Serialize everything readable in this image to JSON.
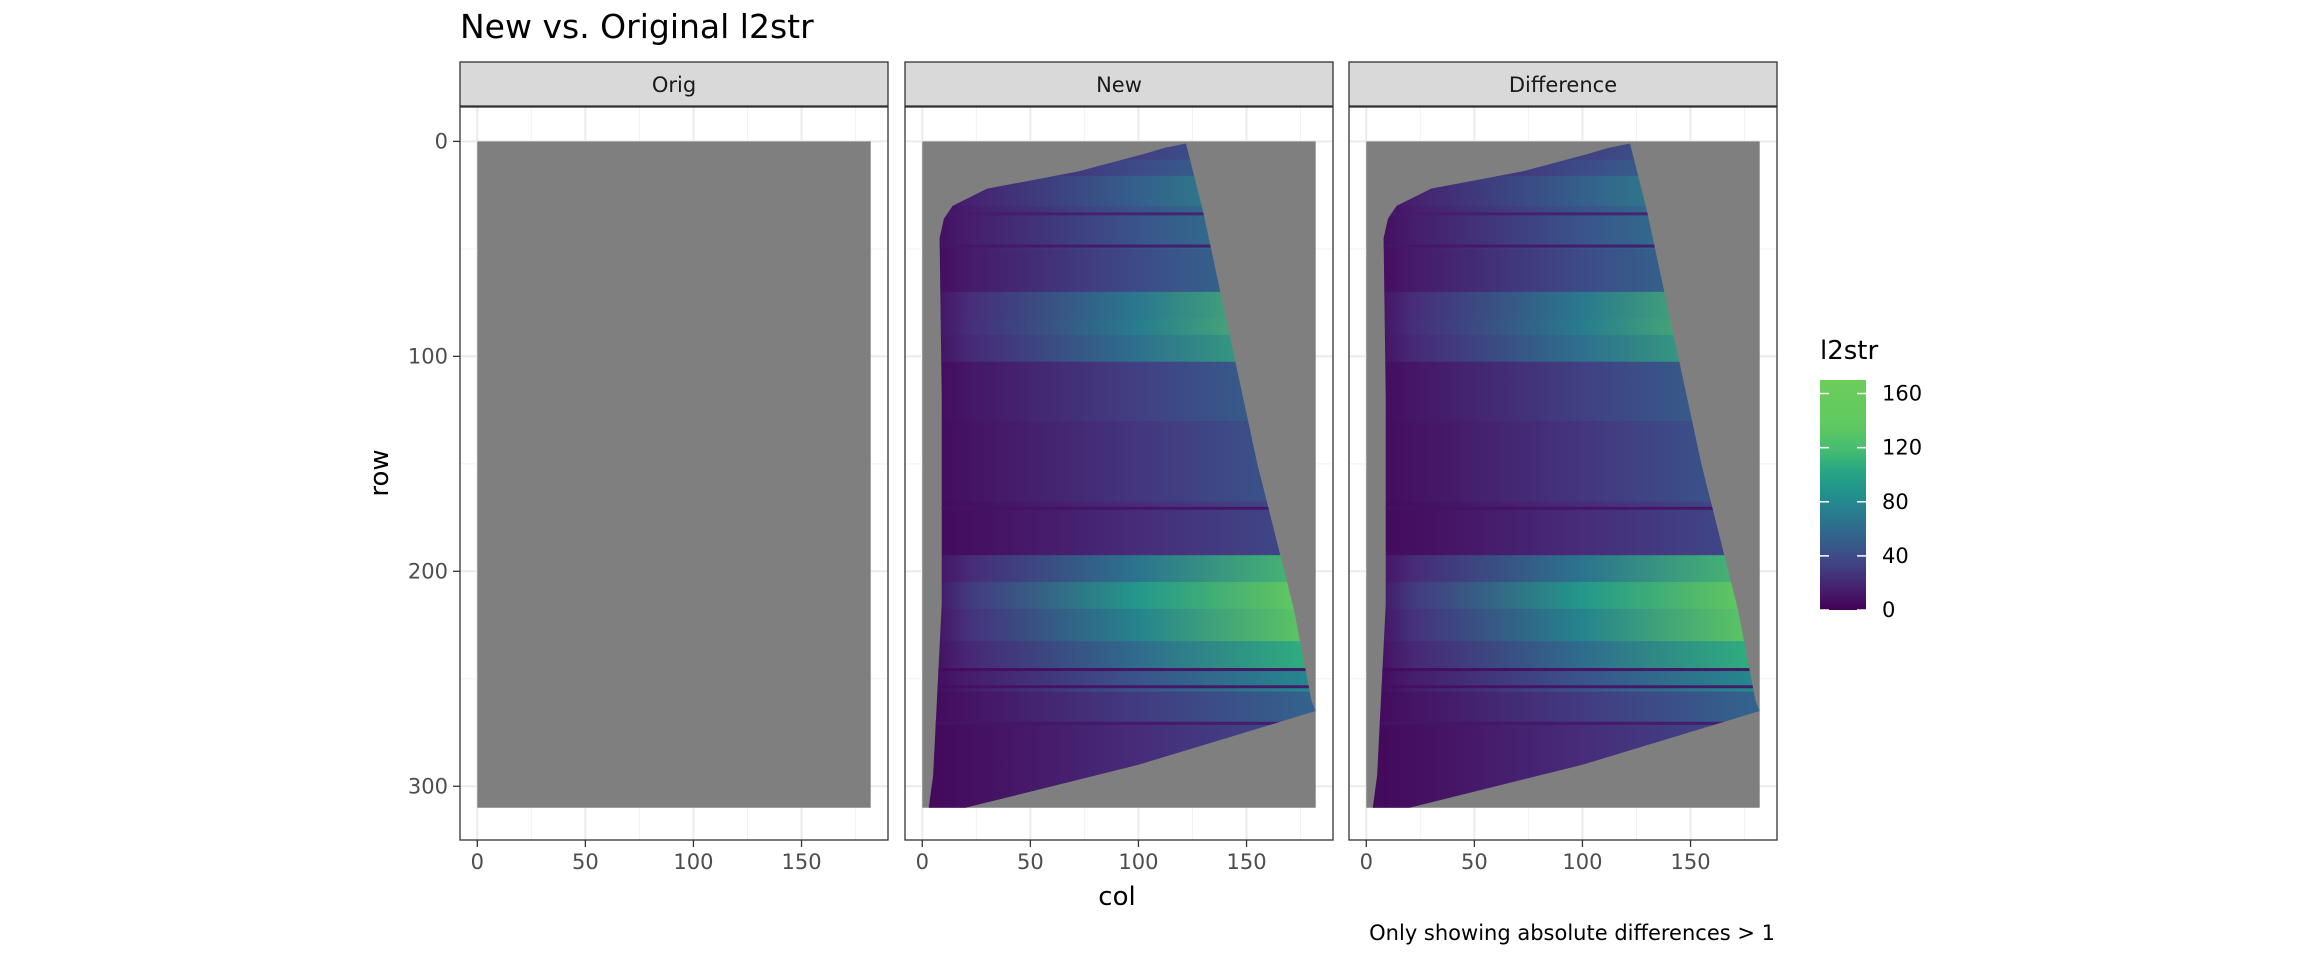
{
  "chart_data": {
    "type": "heatmap",
    "title": "New vs. Original l2str",
    "caption": "Only showing absolute differences > 1",
    "xlabel": "col",
    "ylabel": "row",
    "facets": [
      "Orig",
      "New",
      "Difference"
    ],
    "x_ticks": [
      0,
      50,
      100,
      150
    ],
    "y_ticks": [
      0,
      100,
      200,
      300
    ],
    "xlim": [
      -8,
      190
    ],
    "ylim": [
      -16,
      325
    ],
    "y_reversed": true,
    "grid": true,
    "raster_extent": {
      "col": [
        0,
        182
      ],
      "row": [
        0,
        310
      ]
    },
    "na_color": "#7f7f7f",
    "colormap": "viridis",
    "legend": {
      "title": "l2str",
      "position": "right",
      "limits": [
        0,
        170
      ],
      "breaks": [
        0,
        40,
        80,
        120,
        160
      ],
      "colors": [
        "#440154",
        "#3b528b",
        "#21908d",
        "#5dc963",
        "#6ccd5a"
      ]
    },
    "valid_region_polygon": [
      [
        14,
        30
      ],
      [
        30,
        22
      ],
      [
        72,
        14
      ],
      [
        102,
        6
      ],
      [
        112,
        3
      ],
      [
        122,
        1
      ],
      [
        130,
        33
      ],
      [
        140,
        80
      ],
      [
        155,
        150
      ],
      [
        172,
        218
      ],
      [
        180,
        260
      ],
      [
        182,
        265
      ],
      [
        100,
        290
      ],
      [
        20,
        310
      ],
      [
        3,
        310
      ],
      [
        5,
        295
      ],
      [
        9,
        215
      ],
      [
        9,
        120
      ],
      [
        8,
        45
      ],
      [
        10,
        36
      ]
    ],
    "panels": [
      {
        "name": "Orig",
        "content": "all NA (grey)"
      },
      {
        "name": "New",
        "value_profile": [
          {
            "row": 5,
            "max": 60
          },
          {
            "row": 12,
            "max": 70
          },
          {
            "row": 20,
            "max": 95
          },
          {
            "row": 40,
            "max": 80
          },
          {
            "row": 60,
            "max": 70
          },
          {
            "row": 80,
            "max": 125
          },
          {
            "row": 85,
            "max": 130
          },
          {
            "row": 95,
            "max": 115
          },
          {
            "row": 110,
            "max": 60
          },
          {
            "row": 150,
            "max": 50
          },
          {
            "row": 185,
            "max": 40
          },
          {
            "row": 200,
            "max": 120
          },
          {
            "row": 210,
            "max": 165
          },
          {
            "row": 225,
            "max": 140
          },
          {
            "row": 240,
            "max": 110
          },
          {
            "row": 250,
            "max": 80
          },
          {
            "row": 262,
            "max": 55
          },
          {
            "row": 280,
            "max": 40
          }
        ]
      },
      {
        "name": "Difference",
        "content": "same as New"
      }
    ]
  }
}
